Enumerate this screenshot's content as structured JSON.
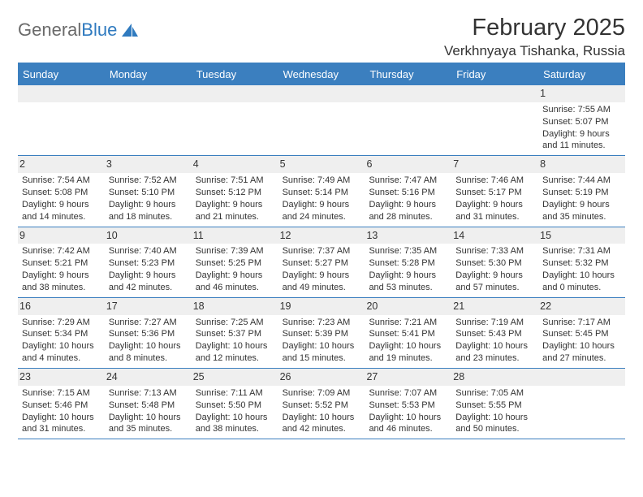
{
  "brand": {
    "part1": "General",
    "part2": "Blue"
  },
  "title": "February 2025",
  "location": "Verkhnyaya Tishanka, Russia",
  "colors": {
    "header_bg": "#3b7fbf",
    "header_fg": "#ffffff",
    "daynum_bg": "#efefef",
    "rule": "#3b7fbf",
    "text": "#333333",
    "logo_gray": "#6a6a6a",
    "logo_blue": "#2f7abf",
    "page_bg": "#ffffff"
  },
  "dow": [
    "Sunday",
    "Monday",
    "Tuesday",
    "Wednesday",
    "Thursday",
    "Friday",
    "Saturday"
  ],
  "weeks": [
    [
      {
        "n": "",
        "t": ""
      },
      {
        "n": "",
        "t": ""
      },
      {
        "n": "",
        "t": ""
      },
      {
        "n": "",
        "t": ""
      },
      {
        "n": "",
        "t": ""
      },
      {
        "n": "",
        "t": ""
      },
      {
        "n": "1",
        "t": "Sunrise: 7:55 AM\nSunset: 5:07 PM\nDaylight: 9 hours and 11 minutes."
      }
    ],
    [
      {
        "n": "2",
        "t": "Sunrise: 7:54 AM\nSunset: 5:08 PM\nDaylight: 9 hours and 14 minutes."
      },
      {
        "n": "3",
        "t": "Sunrise: 7:52 AM\nSunset: 5:10 PM\nDaylight: 9 hours and 18 minutes."
      },
      {
        "n": "4",
        "t": "Sunrise: 7:51 AM\nSunset: 5:12 PM\nDaylight: 9 hours and 21 minutes."
      },
      {
        "n": "5",
        "t": "Sunrise: 7:49 AM\nSunset: 5:14 PM\nDaylight: 9 hours and 24 minutes."
      },
      {
        "n": "6",
        "t": "Sunrise: 7:47 AM\nSunset: 5:16 PM\nDaylight: 9 hours and 28 minutes."
      },
      {
        "n": "7",
        "t": "Sunrise: 7:46 AM\nSunset: 5:17 PM\nDaylight: 9 hours and 31 minutes."
      },
      {
        "n": "8",
        "t": "Sunrise: 7:44 AM\nSunset: 5:19 PM\nDaylight: 9 hours and 35 minutes."
      }
    ],
    [
      {
        "n": "9",
        "t": "Sunrise: 7:42 AM\nSunset: 5:21 PM\nDaylight: 9 hours and 38 minutes."
      },
      {
        "n": "10",
        "t": "Sunrise: 7:40 AM\nSunset: 5:23 PM\nDaylight: 9 hours and 42 minutes."
      },
      {
        "n": "11",
        "t": "Sunrise: 7:39 AM\nSunset: 5:25 PM\nDaylight: 9 hours and 46 minutes."
      },
      {
        "n": "12",
        "t": "Sunrise: 7:37 AM\nSunset: 5:27 PM\nDaylight: 9 hours and 49 minutes."
      },
      {
        "n": "13",
        "t": "Sunrise: 7:35 AM\nSunset: 5:28 PM\nDaylight: 9 hours and 53 minutes."
      },
      {
        "n": "14",
        "t": "Sunrise: 7:33 AM\nSunset: 5:30 PM\nDaylight: 9 hours and 57 minutes."
      },
      {
        "n": "15",
        "t": "Sunrise: 7:31 AM\nSunset: 5:32 PM\nDaylight: 10 hours and 0 minutes."
      }
    ],
    [
      {
        "n": "16",
        "t": "Sunrise: 7:29 AM\nSunset: 5:34 PM\nDaylight: 10 hours and 4 minutes."
      },
      {
        "n": "17",
        "t": "Sunrise: 7:27 AM\nSunset: 5:36 PM\nDaylight: 10 hours and 8 minutes."
      },
      {
        "n": "18",
        "t": "Sunrise: 7:25 AM\nSunset: 5:37 PM\nDaylight: 10 hours and 12 minutes."
      },
      {
        "n": "19",
        "t": "Sunrise: 7:23 AM\nSunset: 5:39 PM\nDaylight: 10 hours and 15 minutes."
      },
      {
        "n": "20",
        "t": "Sunrise: 7:21 AM\nSunset: 5:41 PM\nDaylight: 10 hours and 19 minutes."
      },
      {
        "n": "21",
        "t": "Sunrise: 7:19 AM\nSunset: 5:43 PM\nDaylight: 10 hours and 23 minutes."
      },
      {
        "n": "22",
        "t": "Sunrise: 7:17 AM\nSunset: 5:45 PM\nDaylight: 10 hours and 27 minutes."
      }
    ],
    [
      {
        "n": "23",
        "t": "Sunrise: 7:15 AM\nSunset: 5:46 PM\nDaylight: 10 hours and 31 minutes."
      },
      {
        "n": "24",
        "t": "Sunrise: 7:13 AM\nSunset: 5:48 PM\nDaylight: 10 hours and 35 minutes."
      },
      {
        "n": "25",
        "t": "Sunrise: 7:11 AM\nSunset: 5:50 PM\nDaylight: 10 hours and 38 minutes."
      },
      {
        "n": "26",
        "t": "Sunrise: 7:09 AM\nSunset: 5:52 PM\nDaylight: 10 hours and 42 minutes."
      },
      {
        "n": "27",
        "t": "Sunrise: 7:07 AM\nSunset: 5:53 PM\nDaylight: 10 hours and 46 minutes."
      },
      {
        "n": "28",
        "t": "Sunrise: 7:05 AM\nSunset: 5:55 PM\nDaylight: 10 hours and 50 minutes."
      },
      {
        "n": "",
        "t": ""
      }
    ]
  ]
}
